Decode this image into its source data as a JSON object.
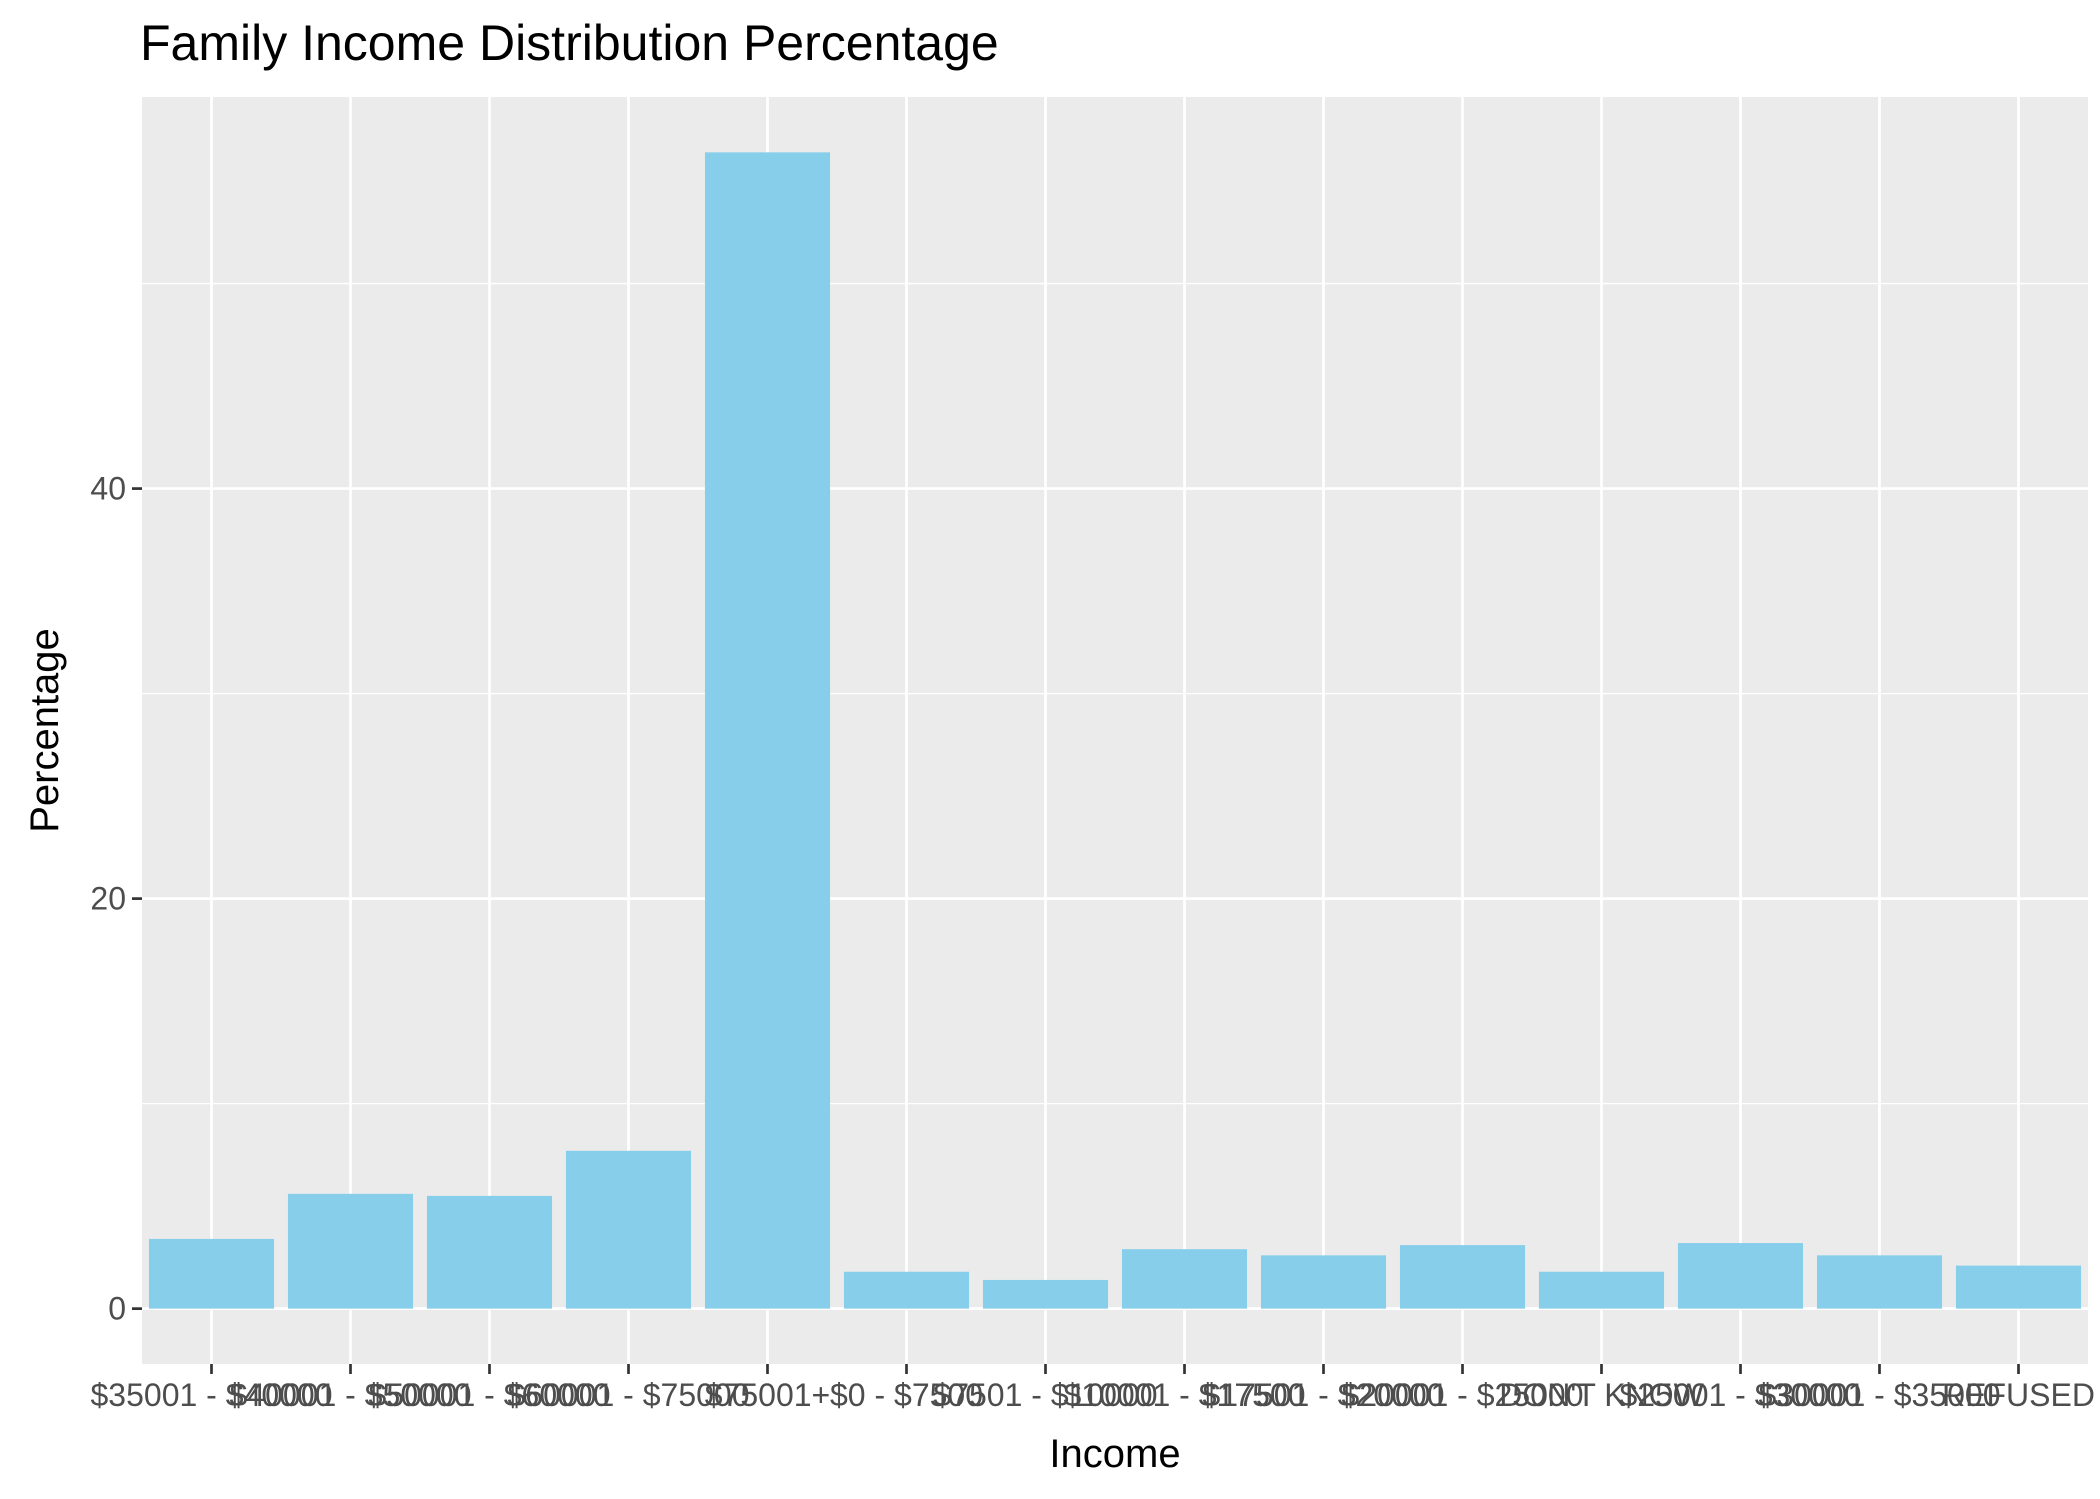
{
  "chart_data": {
    "type": "bar",
    "title": "Family Income Distribution Percentage",
    "xlabel": "Income",
    "ylabel": "Percentage",
    "categories": [
      "$35001 - $40000",
      "$40001 - $50000",
      "$50001 - $60000",
      "$60001 - $75000",
      "$75001+",
      "$0 - $7500",
      "$7501 - $10000",
      "$10001 - $17500",
      "$17501 - $20000",
      "$20001 - $25000",
      "DON'T KNOW",
      "$25001 - $30000",
      "$30001 - $35000",
      "REFUSED"
    ],
    "values": [
      3.4,
      5.6,
      5.5,
      7.7,
      56.4,
      1.8,
      1.4,
      2.9,
      2.6,
      3.1,
      1.8,
      3.2,
      2.6,
      2.1
    ],
    "ylim": [
      -2.7,
      59.1
    ],
    "yticks": [
      0,
      20,
      40
    ],
    "y_minor_ticks": [
      10,
      30,
      50
    ],
    "grid": true,
    "colors": {
      "bar": "#87CEEB",
      "panel": "#EBEBEB",
      "grid": "#FFFFFF",
      "text": "#4D4D4D",
      "tick": "#333333"
    }
  }
}
